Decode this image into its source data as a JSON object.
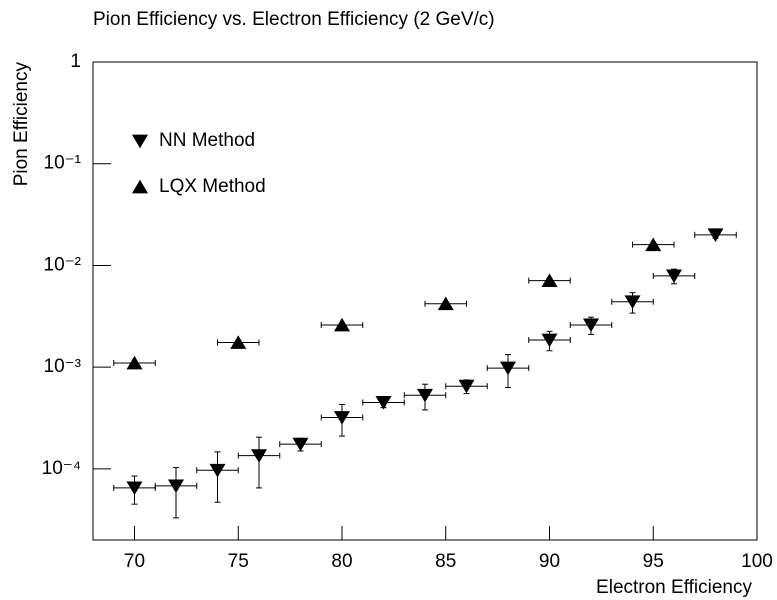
{
  "chart_data": {
    "type": "scatter",
    "title": "Pion Efficiency vs. Electron Efficiency (2 GeV/c)",
    "x_label": "Electron Efficiency",
    "y_label": "Pion Efficiency",
    "xlim": [
      68,
      100
    ],
    "xticks": [
      70,
      75,
      80,
      85,
      90,
      95,
      100
    ],
    "ylim": [
      2e-05,
      1
    ],
    "log_y": true,
    "yticks": [
      1,
      {
        "value": 0.1,
        "label": "10⁻¹"
      },
      {
        "value": 0.01,
        "label": "10⁻²"
      },
      {
        "value": 0.001,
        "label": "10⁻³"
      },
      {
        "value": 0.0001,
        "label": "10⁻⁴"
      }
    ],
    "legend": "upper-left",
    "series": [
      {
        "name": "NN Method",
        "color": "#000000",
        "marker": "triangle-down",
        "x": [
          70,
          72,
          74,
          76,
          78,
          80,
          82,
          84,
          86,
          88,
          90,
          92,
          94,
          96,
          98
        ],
        "values": [
          6.5e-05,
          6.8e-05,
          9.7e-05,
          0.000135,
          0.000175,
          0.00032,
          0.00045,
          0.00053,
          0.00065,
          0.00098,
          0.00185,
          0.0026,
          0.0044,
          0.0079,
          0.02
        ],
        "xerr": [
          1,
          1,
          1,
          1,
          1,
          1,
          1,
          1,
          1,
          1,
          1,
          1,
          1,
          1,
          1
        ],
        "yerr": [
          2e-05,
          3.5e-05,
          5e-05,
          7e-05,
          2.5e-05,
          0.00011,
          5e-05,
          0.00015,
          0.0001,
          0.00035,
          0.0004,
          0.0005,
          0.001,
          0.0013,
          0.0015
        ]
      },
      {
        "name": "LQX Method",
        "color": "#000000",
        "marker": "triangle-up",
        "x": [
          70,
          75,
          80,
          85,
          90,
          95
        ],
        "values": [
          0.0011,
          0.00175,
          0.0026,
          0.0042,
          0.0071,
          0.016
        ],
        "xerr": [
          1,
          1,
          1,
          1,
          1,
          1
        ],
        "yerr": [
          0,
          0,
          0,
          0,
          0,
          0
        ]
      }
    ]
  }
}
